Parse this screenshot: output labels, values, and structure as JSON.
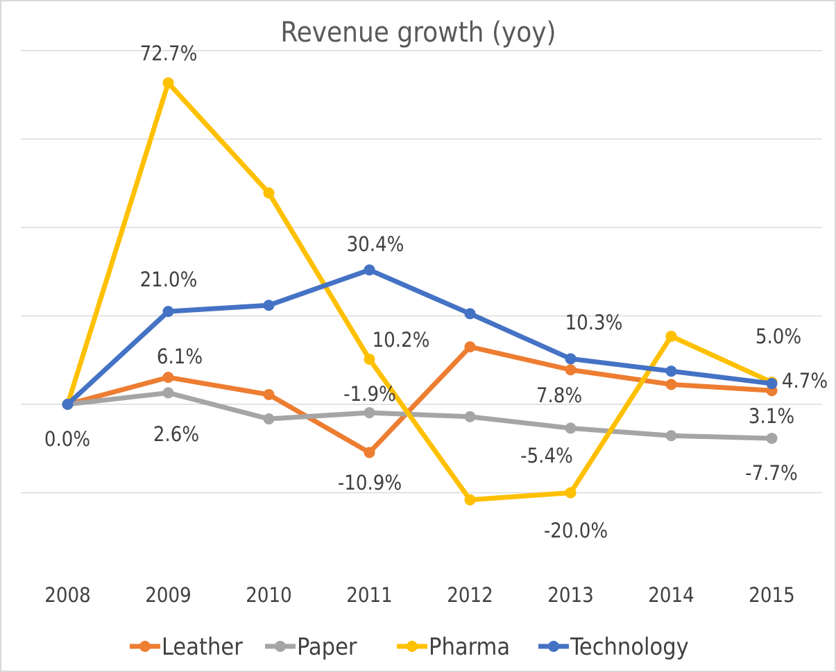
{
  "chart_data": {
    "type": "line",
    "title": "Revenue growth (yoy)",
    "categories": [
      "2008",
      "2009",
      "2010",
      "2011",
      "2012",
      "2013",
      "2014",
      "2015"
    ],
    "ylim": [
      -40,
      80
    ],
    "y_unit": "%",
    "grid": true,
    "y_axis_labels_shown": false,
    "legend_position": "bottom",
    "series": [
      {
        "name": "Leather",
        "color": "#ED7D31",
        "values": [
          0.0,
          6.1,
          2.2,
          -10.9,
          13.0,
          7.8,
          4.5,
          3.1
        ]
      },
      {
        "name": "Paper",
        "color": "#A5A5A5",
        "values": [
          0.0,
          2.6,
          -3.3,
          -1.9,
          -2.8,
          -5.4,
          -7.1,
          -7.7
        ]
      },
      {
        "name": "Pharma",
        "color": "#FFC000",
        "values": [
          0.0,
          72.7,
          47.8,
          10.2,
          -21.6,
          -20.0,
          15.4,
          5.0
        ]
      },
      {
        "name": "Technology",
        "color": "#4472C4",
        "values": [
          0.0,
          21.0,
          22.4,
          30.4,
          20.5,
          10.3,
          7.5,
          4.7
        ]
      }
    ],
    "data_labels": [
      {
        "series": "Technology",
        "category": "2008",
        "text": "0.0%"
      },
      {
        "series": "Pharma",
        "category": "2009",
        "text": "72.7%"
      },
      {
        "series": "Technology",
        "category": "2009",
        "text": "21.0%"
      },
      {
        "series": "Leather",
        "category": "2009",
        "text": "6.1%"
      },
      {
        "series": "Paper",
        "category": "2009",
        "text": "2.6%"
      },
      {
        "series": "Technology",
        "category": "2011",
        "text": "30.4%"
      },
      {
        "series": "Pharma",
        "category": "2011",
        "text": "10.2%"
      },
      {
        "series": "Paper",
        "category": "2011",
        "text": "-1.9%"
      },
      {
        "series": "Leather",
        "category": "2011",
        "text": "-10.9%"
      },
      {
        "series": "Technology",
        "category": "2013",
        "text": "10.3%"
      },
      {
        "series": "Leather",
        "category": "2013",
        "text": "7.8%"
      },
      {
        "series": "Paper",
        "category": "2013",
        "text": "-5.4%"
      },
      {
        "series": "Pharma",
        "category": "2013",
        "text": "-20.0%"
      },
      {
        "series": "Pharma",
        "category": "2015",
        "text": "5.0%"
      },
      {
        "series": "Technology",
        "category": "2015",
        "text": "4.7%"
      },
      {
        "series": "Leather",
        "category": "2015",
        "text": "3.1%"
      },
      {
        "series": "Paper",
        "category": "2015",
        "text": "-7.7%"
      }
    ]
  }
}
